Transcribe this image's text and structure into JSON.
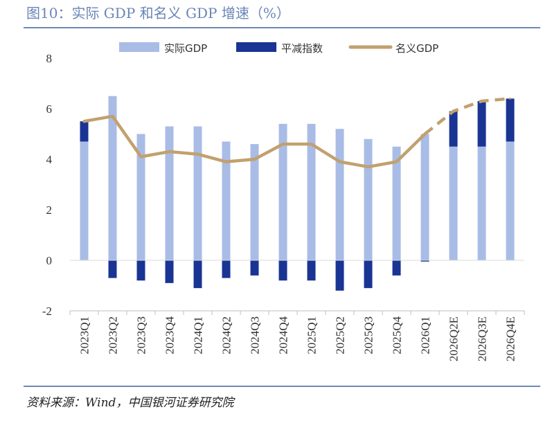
{
  "title": "图10：实际 GDP 和名义 GDP 增速（%）",
  "source": "资料来源：Wind，中国银河证券研究院",
  "colors": {
    "real": "#a9bce6",
    "deflator": "#1a3494",
    "nominal": "#c2a06e",
    "frame": "#6f87b8"
  },
  "chart_data": {
    "type": "bar",
    "title": "图10：实际 GDP 和名义 GDP 增速（%）",
    "categories": [
      "2023Q1",
      "2023Q2",
      "2023Q3",
      "2023Q4",
      "2024Q1",
      "2024Q2",
      "2024Q3",
      "2024Q4",
      "2025Q1",
      "2025Q2",
      "2025Q3",
      "2025Q4",
      "2026Q1",
      "2026Q2E",
      "2026Q3E",
      "2026Q4E"
    ],
    "ylim": [
      -2,
      8
    ],
    "yticks": [
      "8",
      "6",
      "4",
      "2",
      "0",
      "-2"
    ],
    "legend": {
      "placement": "top",
      "labels": [
        "实际GDP",
        "平减指数",
        "名义GDP"
      ]
    },
    "series": [
      {
        "name": "实际GDP",
        "kind": "bar",
        "values": [
          4.7,
          6.5,
          5.0,
          5.3,
          5.3,
          4.7,
          4.6,
          5.4,
          5.4,
          5.2,
          4.8,
          4.5,
          5.0,
          4.5,
          4.5,
          4.7
        ]
      },
      {
        "name": "平减指数",
        "kind": "bar",
        "values": [
          0.8,
          -0.7,
          -0.8,
          -0.9,
          -1.1,
          -0.7,
          -0.6,
          -0.8,
          -0.8,
          -1.2,
          -1.1,
          -0.6,
          -0.05,
          1.4,
          1.8,
          1.7
        ]
      },
      {
        "name": "名义GDP",
        "kind": "line",
        "values": [
          5.5,
          5.7,
          4.1,
          4.3,
          4.2,
          3.9,
          4.0,
          4.6,
          4.6,
          3.9,
          3.7,
          3.9,
          5.0,
          5.9,
          6.3,
          6.4
        ],
        "dashed_from_index": 12
      }
    ]
  }
}
